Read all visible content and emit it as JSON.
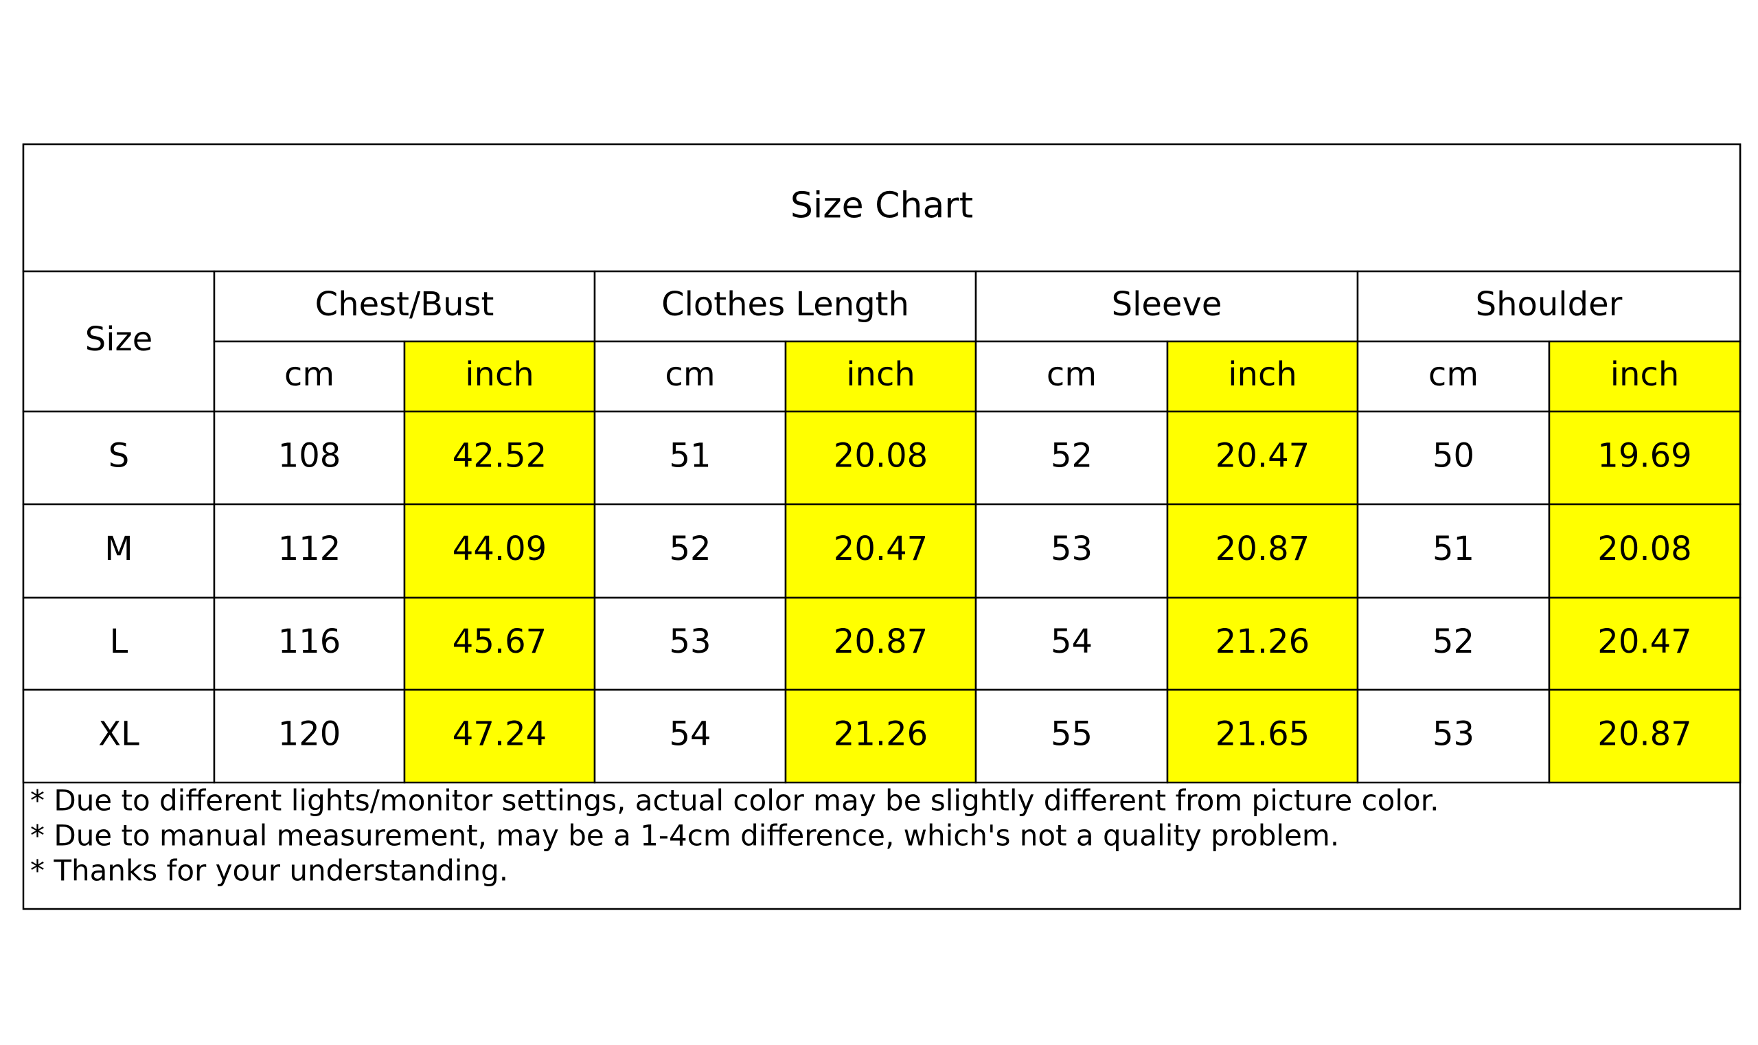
{
  "title": "Size Chart",
  "header": {
    "size_label": "Size",
    "groups": [
      "Chest/Bust",
      "Clothes Length",
      "Sleeve",
      "Shoulder"
    ],
    "units": [
      "cm",
      "inch",
      "cm",
      "inch",
      "cm",
      "inch",
      "cm",
      "inch"
    ]
  },
  "rows": [
    {
      "size": "S",
      "values": [
        108,
        42.52,
        51,
        20.08,
        52,
        20.47,
        50,
        19.69
      ]
    },
    {
      "size": "M",
      "values": [
        112,
        44.09,
        52,
        20.47,
        53,
        20.87,
        51,
        20.08
      ]
    },
    {
      "size": "L",
      "values": [
        116,
        45.67,
        53,
        20.87,
        54,
        21.26,
        52,
        20.47
      ]
    },
    {
      "size": "XL",
      "values": [
        120,
        47.24,
        54,
        21.26,
        55,
        21.65,
        53,
        20.87
      ]
    }
  ],
  "notes": [
    "* Due to different lights/monitor settings, actual color may be slightly different from picture color.",
    "* Due to manual measurement, may be a 1-4cm difference, which's not a quality problem.",
    "* Thanks for your understanding."
  ]
}
